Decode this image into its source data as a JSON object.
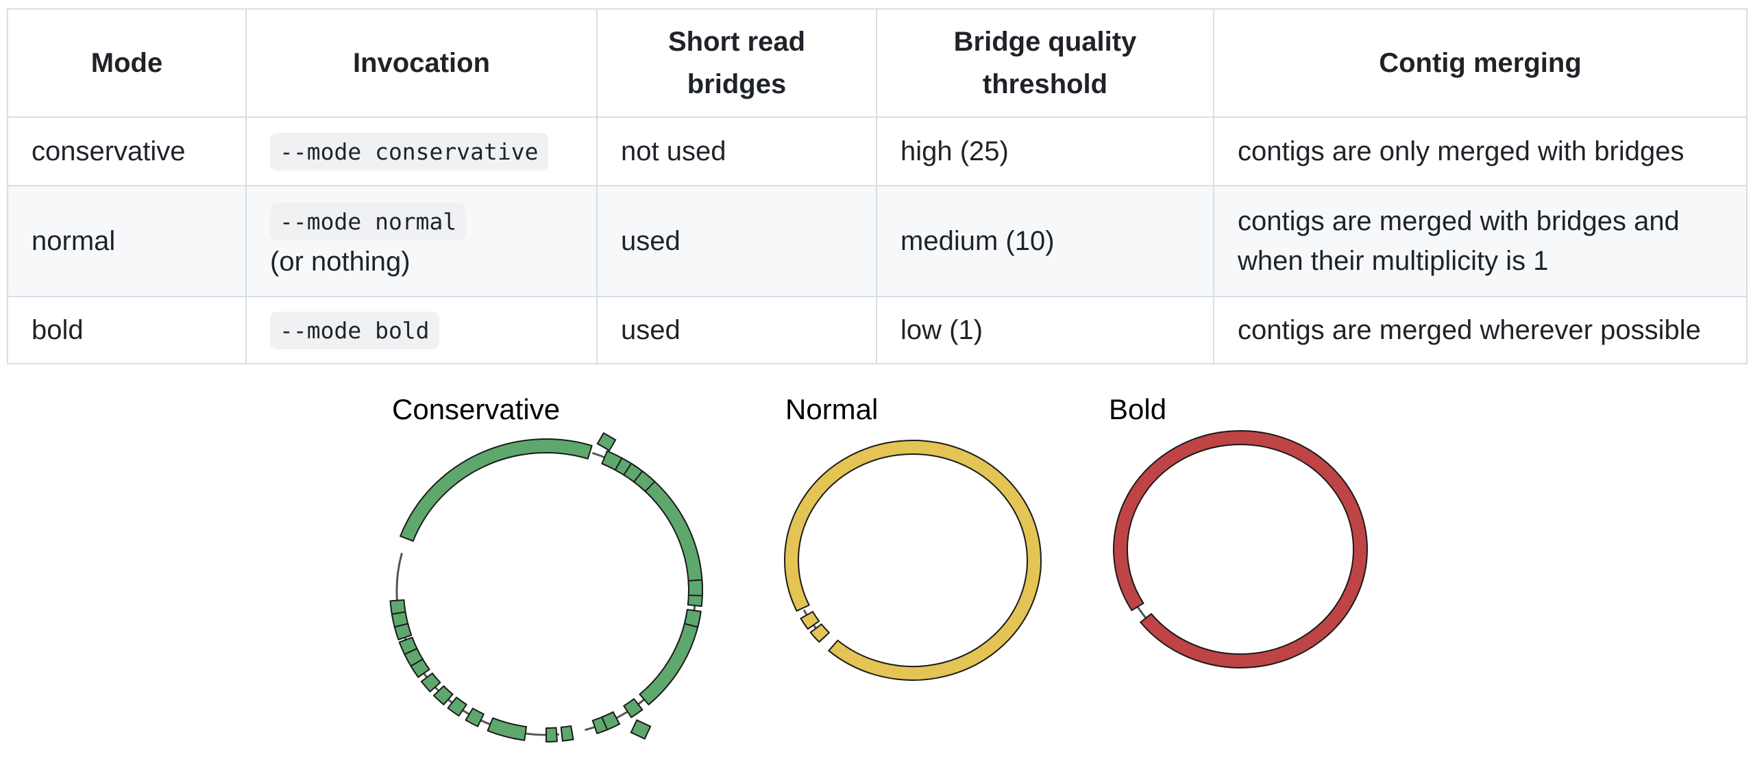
{
  "table": {
    "headers": [
      "Mode",
      "Invocation",
      "Short read bridges",
      "Bridge quality threshold",
      "Contig merging"
    ],
    "header_lines": [
      [
        "Mode"
      ],
      [
        "Invocation"
      ],
      [
        "Short read",
        "bridges"
      ],
      [
        "Bridge quality",
        "threshold"
      ],
      [
        "Contig merging"
      ]
    ],
    "rows": [
      {
        "mode": "conservative",
        "invocation": "--mode conservative",
        "invocation_note": "",
        "bridges": "not used",
        "threshold": "high (25)",
        "merging": "contigs are only merged with bridges"
      },
      {
        "mode": "normal",
        "invocation": "--mode normal",
        "invocation_note": "(or nothing)",
        "bridges": "used",
        "threshold": "medium (10)",
        "merging": "contigs are merged with bridges and when their multiplicity is 1"
      },
      {
        "mode": "bold",
        "invocation": "--mode bold",
        "invocation_note": "",
        "bridges": "used",
        "threshold": "low (1)",
        "merging": "contigs are merged wherever possible"
      }
    ]
  },
  "diagrams": {
    "conservative": {
      "label": "Conservative",
      "color": "#5ea86e"
    },
    "normal": {
      "label": "Normal",
      "color": "#e3c454"
    },
    "bold": {
      "label": "Bold",
      "color": "#bf4446"
    }
  }
}
